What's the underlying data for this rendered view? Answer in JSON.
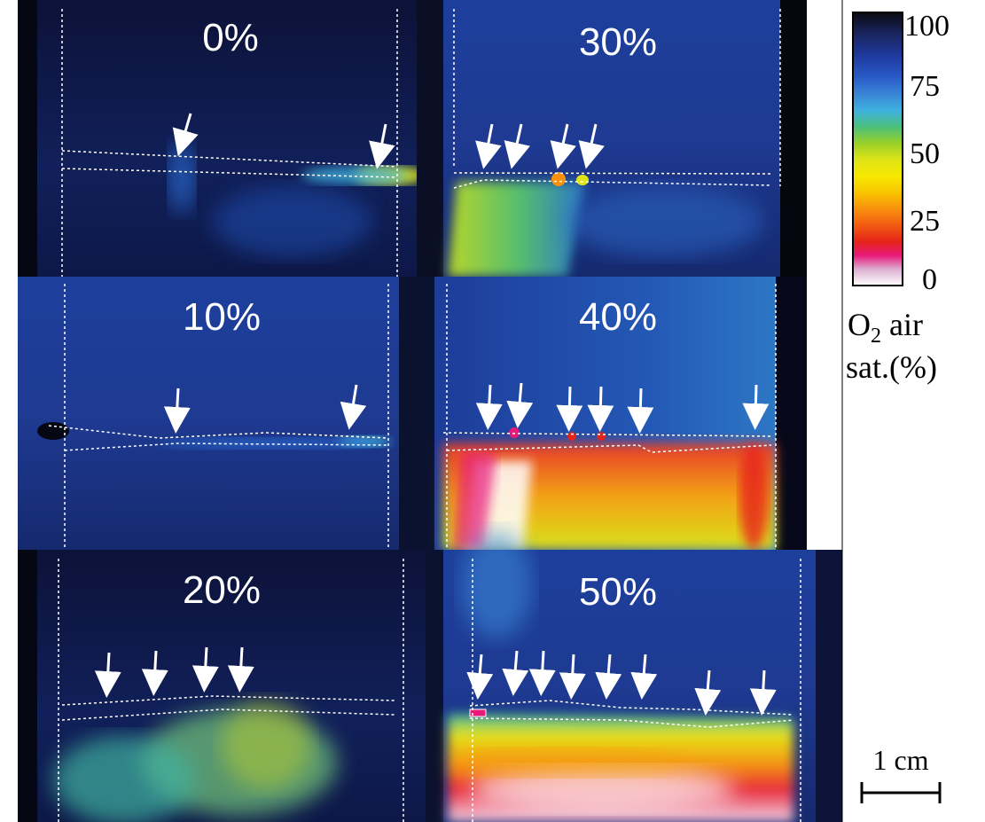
{
  "panels": [
    {
      "id": "p0",
      "label": "0%",
      "arrows": 2
    },
    {
      "id": "p30",
      "label": "30%",
      "arrows": 4
    },
    {
      "id": "p10",
      "label": "10%",
      "arrows": 2
    },
    {
      "id": "p40",
      "label": "40%",
      "arrows": 6
    },
    {
      "id": "p20",
      "label": "20%",
      "arrows": 4
    },
    {
      "id": "p50",
      "label": "50%",
      "arrows": 8
    }
  ],
  "colorbar": {
    "ticks": [
      "100",
      "75",
      "50",
      "25",
      "0"
    ],
    "title_line1_main": "O",
    "title_line1_sub": "2",
    "title_line1_rest": " air",
    "title_line2": "sat.(%)",
    "colors": [
      "#0b0b12",
      "#1a2560",
      "#1f3aa0",
      "#2a5cc8",
      "#3a86d6",
      "#3fb2e0",
      "#4cc07a",
      "#9ad028",
      "#dfe418",
      "#f7e800",
      "#f8c400",
      "#f8900c",
      "#f25a12",
      "#e6241a",
      "#e8197a",
      "#dcaed0",
      "#ffffff"
    ]
  },
  "scale_bar": {
    "label": "1 cm"
  }
}
